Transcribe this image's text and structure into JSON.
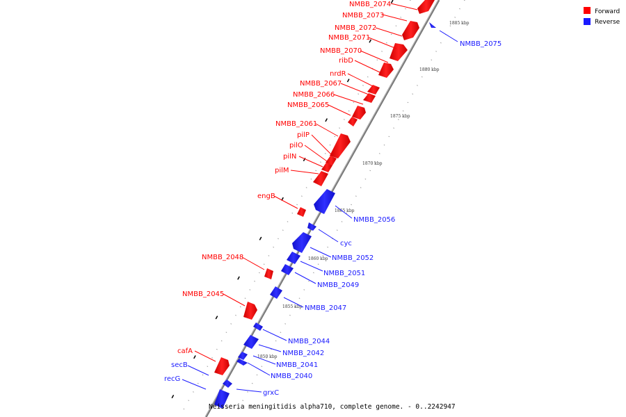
{
  "legend": {
    "forward_label": "Forward",
    "reverse_label": "Reverse",
    "forward_color": "#ff0000",
    "reverse_color": "#1a1aff"
  },
  "caption": "Neisseria meningitidis alpha710, complete genome. - 0..2242947",
  "scale_ticks": [
    "1885 kbp",
    "1880 kbp",
    "1875 kbp",
    "1870 kbp",
    "1865 kbp",
    "1860 kbp",
    "1855 kbp",
    "1850 kbp"
  ],
  "forward_genes": [
    "NMBB_2074",
    "NMBB_2073",
    "NMBB_2072",
    "NMBB_2071",
    "NMBB_2070",
    "ribD",
    "nrdR",
    "NMBB_2067",
    "NMBB_2066",
    "NMBB_2065",
    "NMBB_2061",
    "pilP",
    "pilO",
    "pilN",
    "pilM",
    "engB",
    "NMBB_2048",
    "NMBB_2045",
    "cafA"
  ],
  "reverse_genes": [
    "NMBB_2075",
    "NMBB_2056",
    "cyc",
    "NMBB_2052",
    "NMBB_2051",
    "NMBB_2049",
    "NMBB_2047",
    "NMBB_2044",
    "NMBB_2042",
    "NMBB_2041",
    "NMBB_2040",
    "secB",
    "recG",
    "grxC"
  ]
}
